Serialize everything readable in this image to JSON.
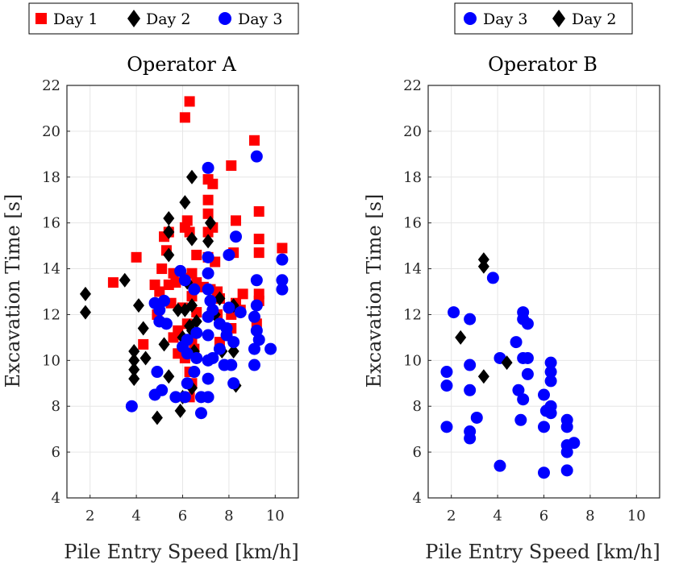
{
  "chart_data": [
    {
      "type": "scatter",
      "title": "Operator A",
      "xlabel": "Pile Entry Speed [km/h]",
      "ylabel": "Excavation Time [s]",
      "xlim": [
        1,
        11
      ],
      "ylim": [
        4,
        22
      ],
      "xticks": [
        2,
        4,
        6,
        8,
        10
      ],
      "yticks": [
        4,
        6,
        8,
        10,
        12,
        14,
        16,
        18,
        20,
        22
      ],
      "grid": true,
      "legend": {
        "placement": "top-left, outside",
        "order": [
          "Day 1",
          "Day 2",
          "Day 3"
        ]
      },
      "series": [
        {
          "name": "Day 1",
          "marker": "square",
          "color": "#ff0000",
          "points": [
            [
              6.3,
              21.3
            ],
            [
              6.1,
              20.6
            ],
            [
              9.1,
              19.6
            ],
            [
              8.1,
              18.5
            ],
            [
              7.1,
              17.9
            ],
            [
              7.3,
              17.7
            ],
            [
              7.1,
              17.0
            ],
            [
              7.1,
              16.4
            ],
            [
              9.3,
              16.5
            ],
            [
              8.3,
              16.1
            ],
            [
              6.2,
              16.1
            ],
            [
              6.1,
              15.8
            ],
            [
              6.3,
              15.6
            ],
            [
              5.4,
              15.6
            ],
            [
              5.2,
              15.4
            ],
            [
              7.3,
              15.8
            ],
            [
              7.1,
              15.6
            ],
            [
              9.3,
              15.3
            ],
            [
              5.3,
              14.8
            ],
            [
              8.2,
              14.7
            ],
            [
              9.3,
              14.7
            ],
            [
              10.3,
              14.9
            ],
            [
              4.0,
              14.5
            ],
            [
              6.6,
              14.6
            ],
            [
              7.1,
              14.5
            ],
            [
              7.4,
              14.3
            ],
            [
              5.1,
              14.0
            ],
            [
              5.6,
              13.8
            ],
            [
              6.1,
              13.6
            ],
            [
              6.4,
              13.8
            ],
            [
              3.0,
              13.4
            ],
            [
              6.6,
              13.4
            ],
            [
              5.7,
              13.4
            ],
            [
              5.4,
              13.3
            ],
            [
              6.9,
              13.2
            ],
            [
              7.2,
              13.1
            ],
            [
              4.8,
              13.3
            ],
            [
              5.0,
              13.0
            ],
            [
              7.5,
              13.0
            ],
            [
              6.4,
              12.8
            ],
            [
              7.6,
              12.7
            ],
            [
              8.6,
              12.9
            ],
            [
              9.3,
              12.9
            ],
            [
              9.3,
              12.6
            ],
            [
              8.3,
              12.5
            ],
            [
              5.5,
              12.5
            ],
            [
              6.0,
              12.3
            ],
            [
              8.5,
              12.2
            ],
            [
              6.6,
              12.1
            ],
            [
              7.5,
              12.0
            ],
            [
              4.9,
              12.0
            ],
            [
              8.1,
              12.0
            ],
            [
              8.1,
              11.4
            ],
            [
              9.2,
              11.6
            ],
            [
              6.2,
              11.6
            ],
            [
              5.8,
              11.3
            ],
            [
              5.6,
              11.0
            ],
            [
              6.4,
              10.9
            ],
            [
              7.6,
              10.8
            ],
            [
              6.5,
              10.5
            ],
            [
              4.3,
              10.7
            ],
            [
              5.8,
              10.3
            ],
            [
              6.1,
              10.1
            ],
            [
              6.3,
              9.5
            ],
            [
              6.4,
              9.0
            ],
            [
              6.3,
              8.4
            ]
          ]
        },
        {
          "name": "Day 2",
          "marker": "diamond",
          "color": "#000000",
          "points": [
            [
              1.8,
              12.9
            ],
            [
              1.8,
              12.1
            ],
            [
              3.5,
              13.5
            ],
            [
              4.1,
              12.4
            ],
            [
              4.3,
              11.4
            ],
            [
              3.9,
              10.4
            ],
            [
              3.9,
              10.0
            ],
            [
              4.4,
              10.1
            ],
            [
              3.9,
              9.6
            ],
            [
              3.9,
              9.2
            ],
            [
              4.9,
              7.5
            ],
            [
              5.2,
              10.7
            ],
            [
              5.4,
              9.3
            ],
            [
              5.9,
              7.8
            ],
            [
              6.0,
              8.4
            ],
            [
              5.4,
              14.6
            ],
            [
              5.4,
              16.2
            ],
            [
              5.4,
              15.6
            ],
            [
              6.1,
              16.9
            ],
            [
              6.4,
              18.0
            ],
            [
              6.4,
              15.3
            ],
            [
              6.2,
              13.4
            ],
            [
              6.1,
              12.2
            ],
            [
              6.3,
              11.5
            ],
            [
              6.0,
              11.0
            ],
            [
              6.4,
              11.3
            ],
            [
              6.6,
              11.7
            ],
            [
              6.4,
              12.4
            ],
            [
              6.5,
              10.4
            ],
            [
              6.4,
              8.8
            ],
            [
              7.2,
              16.0
            ],
            [
              7.1,
              15.2
            ],
            [
              7.4,
              12.0
            ],
            [
              7.6,
              12.7
            ],
            [
              7.7,
              10.4
            ],
            [
              8.2,
              12.4
            ],
            [
              8.2,
              10.4
            ],
            [
              8.3,
              8.9
            ],
            [
              5.8,
              12.2
            ]
          ]
        },
        {
          "name": "Day 3",
          "marker": "circle",
          "color": "#0000ff",
          "points": [
            [
              7.1,
              18.4
            ],
            [
              9.2,
              18.9
            ],
            [
              8.3,
              15.4
            ],
            [
              7.1,
              14.5
            ],
            [
              8.0,
              14.6
            ],
            [
              7.1,
              13.8
            ],
            [
              6.1,
              13.5
            ],
            [
              5.9,
              13.9
            ],
            [
              6.5,
              13.1
            ],
            [
              7.1,
              13.1
            ],
            [
              7.2,
              12.6
            ],
            [
              7.3,
              12.2
            ],
            [
              7.1,
              11.9
            ],
            [
              7.6,
              11.6
            ],
            [
              7.9,
              11.4
            ],
            [
              7.1,
              11.1
            ],
            [
              6.6,
              11.2
            ],
            [
              6.2,
              10.9
            ],
            [
              6.0,
              10.6
            ],
            [
              6.2,
              10.3
            ],
            [
              6.6,
              10.1
            ],
            [
              6.5,
              9.5
            ],
            [
              6.2,
              9.0
            ],
            [
              6.1,
              8.4
            ],
            [
              5.7,
              8.4
            ],
            [
              6.8,
              8.4
            ],
            [
              6.8,
              7.7
            ],
            [
              7.1,
              8.4
            ],
            [
              7.1,
              9.2
            ],
            [
              7.1,
              10.0
            ],
            [
              7.3,
              10.1
            ],
            [
              7.6,
              10.5
            ],
            [
              7.8,
              9.8
            ],
            [
              8.1,
              9.8
            ],
            [
              8.2,
              9.0
            ],
            [
              8.2,
              10.8
            ],
            [
              8.5,
              12.1
            ],
            [
              8.0,
              12.3
            ],
            [
              7.9,
              11.1
            ],
            [
              5.2,
              12.6
            ],
            [
              4.8,
              12.5
            ],
            [
              5.0,
              12.2
            ],
            [
              5.0,
              11.7
            ],
            [
              5.3,
              11.6
            ],
            [
              4.9,
              9.5
            ],
            [
              4.8,
              8.5
            ],
            [
              5.1,
              8.7
            ],
            [
              3.8,
              8.0
            ],
            [
              9.2,
              13.5
            ],
            [
              9.2,
              12.4
            ],
            [
              9.1,
              11.9
            ],
            [
              9.2,
              11.3
            ],
            [
              9.3,
              10.9
            ],
            [
              9.1,
              10.5
            ],
            [
              9.1,
              9.8
            ],
            [
              10.3,
              14.4
            ],
            [
              10.3,
              13.5
            ],
            [
              10.3,
              13.1
            ],
            [
              9.8,
              10.5
            ]
          ]
        }
      ]
    },
    {
      "type": "scatter",
      "title": "Operator B",
      "xlabel": "Pile Entry Speed [km/h]",
      "ylabel": "Excavation Time [s]",
      "xlim": [
        1,
        11
      ],
      "ylim": [
        4,
        22
      ],
      "xticks": [
        2,
        4,
        6,
        8,
        10
      ],
      "yticks": [
        4,
        6,
        8,
        10,
        12,
        14,
        16,
        18,
        20,
        22
      ],
      "grid": true,
      "legend": {
        "placement": "top-right, outside",
        "order": [
          "Day 3",
          "Day 2"
        ]
      },
      "series": [
        {
          "name": "Day 3",
          "marker": "circle",
          "color": "#0000ff",
          "points": [
            [
              1.8,
              9.5
            ],
            [
              1.8,
              8.9
            ],
            [
              1.8,
              7.1
            ],
            [
              2.1,
              12.1
            ],
            [
              2.8,
              11.8
            ],
            [
              2.8,
              9.8
            ],
            [
              2.8,
              8.7
            ],
            [
              2.8,
              6.9
            ],
            [
              2.8,
              6.6
            ],
            [
              3.1,
              7.5
            ],
            [
              3.8,
              13.6
            ],
            [
              4.1,
              10.1
            ],
            [
              4.1,
              5.4
            ],
            [
              4.8,
              10.8
            ],
            [
              4.9,
              8.7
            ],
            [
              5.0,
              7.4
            ],
            [
              5.1,
              12.1
            ],
            [
              5.1,
              11.8
            ],
            [
              5.3,
              11.6
            ],
            [
              5.1,
              10.1
            ],
            [
              5.3,
              10.1
            ],
            [
              5.3,
              9.4
            ],
            [
              5.1,
              8.3
            ],
            [
              6.3,
              9.9
            ],
            [
              6.3,
              9.5
            ],
            [
              6.3,
              9.1
            ],
            [
              6.0,
              8.5
            ],
            [
              6.1,
              7.8
            ],
            [
              6.3,
              8.0
            ],
            [
              6.3,
              7.7
            ],
            [
              6.0,
              7.1
            ],
            [
              6.0,
              5.1
            ],
            [
              7.0,
              7.4
            ],
            [
              7.0,
              7.1
            ],
            [
              7.0,
              6.3
            ],
            [
              7.0,
              6.0
            ],
            [
              7.0,
              5.2
            ],
            [
              7.3,
              6.4
            ]
          ]
        },
        {
          "name": "Day 2",
          "marker": "diamond",
          "color": "#000000",
          "points": [
            [
              3.4,
              14.4
            ],
            [
              3.4,
              14.1
            ],
            [
              2.4,
              11.0
            ],
            [
              3.4,
              9.3
            ],
            [
              4.4,
              9.9
            ]
          ]
        }
      ]
    }
  ]
}
